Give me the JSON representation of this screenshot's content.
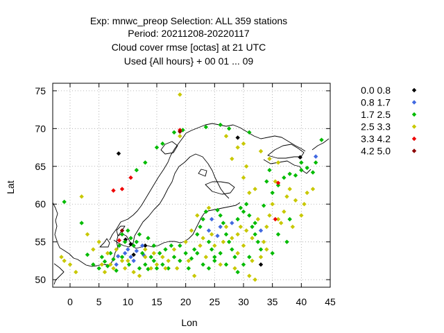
{
  "chart_data": {
    "type": "scatter",
    "title_lines": [
      "Exp: mnwc_preop   Selection: ALL    359 stations",
      "Period: 20211208-20220117",
      "Cloud cover rmse [octas] at  21 UTC",
      "Used {All hours} + 00 01 ... 09"
    ],
    "xlabel": "Lon",
    "ylabel": "Lat",
    "xlim": [
      -3,
      45
    ],
    "ylim": [
      49,
      76
    ],
    "xticks": [
      0,
      5,
      10,
      15,
      20,
      25,
      30,
      35,
      40,
      45
    ],
    "yticks": [
      50,
      55,
      60,
      65,
      70,
      75
    ],
    "grid": true,
    "legend_position": "right",
    "classes": [
      {
        "label": "0.0 0.8",
        "color": "#000000"
      },
      {
        "label": "0.8 1.7",
        "color": "#4169e1"
      },
      {
        "label": "1.7 2.5",
        "color": "#00bb00"
      },
      {
        "label": "2.5 3.3",
        "color": "#c8c800"
      },
      {
        "label": "3.3 4.2",
        "color": "#ee0000"
      },
      {
        "label": "4.2 5.0",
        "color": "#8b0000"
      }
    ],
    "points": [
      [
        [
          8.4,
          66.7
        ],
        [
          9.6,
          55.3
        ],
        [
          10.5,
          54.7
        ],
        [
          11.0,
          53.3
        ],
        [
          13.0,
          54.5
        ],
        [
          29.0,
          68.8
        ],
        [
          33.0,
          52.0
        ],
        [
          39.8,
          66.2
        ]
      ],
      [
        [
          8.0,
          52.0
        ],
        [
          9.5,
          53.5
        ],
        [
          10.0,
          54.0
        ],
        [
          10.5,
          53.0
        ],
        [
          11.0,
          52.5
        ],
        [
          11.5,
          53.8
        ],
        [
          12.5,
          54.5
        ],
        [
          24.0,
          56.5
        ],
        [
          24.5,
          58.0
        ],
        [
          25.5,
          55.8
        ],
        [
          26.0,
          57.0
        ],
        [
          28.0,
          57.5
        ],
        [
          33.0,
          56.5
        ],
        [
          42.5,
          66.3
        ],
        [
          8.3,
          53.1
        ],
        [
          12.8,
          53.2
        ]
      ],
      [
        [
          -1.0,
          60.3
        ],
        [
          2.0,
          57.5
        ],
        [
          3.0,
          53.3
        ],
        [
          4.0,
          52.0
        ],
        [
          5.0,
          51.5
        ],
        [
          5.5,
          53.0
        ],
        [
          6.0,
          52.4
        ],
        [
          6.5,
          51.8
        ],
        [
          7.0,
          53.5
        ],
        [
          7.5,
          52.7
        ],
        [
          8.0,
          51.2
        ],
        [
          8.5,
          54.5
        ],
        [
          9.0,
          53.0
        ],
        [
          9.0,
          56.0
        ],
        [
          9.5,
          55.0
        ],
        [
          10.0,
          56.5
        ],
        [
          10.2,
          52.0
        ],
        [
          10.5,
          55.5
        ],
        [
          11.0,
          54.5
        ],
        [
          11.5,
          55.0
        ],
        [
          12.0,
          51.5
        ],
        [
          12.5,
          53.5
        ],
        [
          13.0,
          52.0
        ],
        [
          13.5,
          51.4
        ],
        [
          14.0,
          53.0
        ],
        [
          14.5,
          52.5
        ],
        [
          15.0,
          51.5
        ],
        [
          15.5,
          53.5
        ],
        [
          16.0,
          52.0
        ],
        [
          17.0,
          51.5
        ],
        [
          18.0,
          53.0
        ],
        [
          19.0,
          52.5
        ],
        [
          20.0,
          53.5
        ],
        [
          20.5,
          51.5
        ],
        [
          21.0,
          52.8
        ],
        [
          21.5,
          54.0
        ],
        [
          22.0,
          56.0
        ],
        [
          22.5,
          57.0
        ],
        [
          23.0,
          58.0
        ],
        [
          23.5,
          59.0
        ],
        [
          24.0,
          55.0
        ],
        [
          24.5,
          54.0
        ],
        [
          25.0,
          53.0
        ],
        [
          25.5,
          59.2
        ],
        [
          26.0,
          58.5
        ],
        [
          26.5,
          57.5
        ],
        [
          27.0,
          56.0
        ],
        [
          27.5,
          55.0
        ],
        [
          28.0,
          54.0
        ],
        [
          28.5,
          53.0
        ],
        [
          29.0,
          58.0
        ],
        [
          29.5,
          59.5
        ],
        [
          30.0,
          59.0
        ],
        [
          30.5,
          60.0
        ],
        [
          31.0,
          58.5
        ],
        [
          31.5,
          57.0
        ],
        [
          32.0,
          56.0
        ],
        [
          32.5,
          55.0
        ],
        [
          33.0,
          54.0
        ],
        [
          33.5,
          59.8
        ],
        [
          34.0,
          63.0
        ],
        [
          34.5,
          64.5
        ],
        [
          35.0,
          61.5
        ],
        [
          36.0,
          62.5
        ],
        [
          37.0,
          63.5
        ],
        [
          38.0,
          64.0
        ],
        [
          39.0,
          63.8
        ],
        [
          40.0,
          64.5
        ],
        [
          41.0,
          64.8
        ],
        [
          42.0,
          64.2
        ],
        [
          43.5,
          68.5
        ],
        [
          31.0,
          69.5
        ],
        [
          27.5,
          70.0
        ],
        [
          26.0,
          70.5
        ],
        [
          23.5,
          70.2
        ],
        [
          19.5,
          69.8
        ],
        [
          13.0,
          65.5
        ],
        [
          11.5,
          64.5
        ],
        [
          15.0,
          67.5
        ],
        [
          16.0,
          68.0
        ],
        [
          18.0,
          69.5
        ],
        [
          22.0,
          53.5
        ],
        [
          23.0,
          52.0
        ],
        [
          24.0,
          51.5
        ],
        [
          25.0,
          52.5
        ],
        [
          26.0,
          53.5
        ],
        [
          27.0,
          52.0
        ],
        [
          29.0,
          51.0
        ],
        [
          30.0,
          52.0
        ],
        [
          31.0,
          53.0
        ],
        [
          32.0,
          57.5
        ],
        [
          36.0,
          56.0
        ],
        [
          38.0,
          58.0
        ],
        [
          40.0,
          65.5
        ],
        [
          42.5,
          65.5
        ],
        [
          19.0,
          54.5
        ],
        [
          17.5,
          54.5
        ],
        [
          16.5,
          54.0
        ],
        [
          13.5,
          55.5
        ],
        [
          12.0,
          56.0
        ],
        [
          14.5,
          54.5
        ],
        [
          35.0,
          53.5
        ],
        [
          37.5,
          55.0
        ]
      ],
      [
        [
          -1.5,
          53.0
        ],
        [
          -1.0,
          52.5
        ],
        [
          0.0,
          52.0
        ],
        [
          1.0,
          51.0
        ],
        [
          2.0,
          61.0
        ],
        [
          3.0,
          56.0
        ],
        [
          4.0,
          54.0
        ],
        [
          5.0,
          55.0
        ],
        [
          5.5,
          52.0
        ],
        [
          6.0,
          51.0
        ],
        [
          6.5,
          53.5
        ],
        [
          7.0,
          52.0
        ],
        [
          7.5,
          51.5
        ],
        [
          8.0,
          54.0
        ],
        [
          9.0,
          52.5
        ],
        [
          9.5,
          51.5
        ],
        [
          10.0,
          52.5
        ],
        [
          11.0,
          51.0
        ],
        [
          12.0,
          50.5
        ],
        [
          13.0,
          53.0
        ],
        [
          14.0,
          51.5
        ],
        [
          15.0,
          52.0
        ],
        [
          16.0,
          53.0
        ],
        [
          17.0,
          52.5
        ],
        [
          18.0,
          54.0
        ],
        [
          19.0,
          74.5
        ],
        [
          19.0,
          69.0
        ],
        [
          20.0,
          55.0
        ],
        [
          21.0,
          56.5
        ],
        [
          22.0,
          58.5
        ],
        [
          22.5,
          54.5
        ],
        [
          23.0,
          55.5
        ],
        [
          23.5,
          53.0
        ],
        [
          24.0,
          59.5
        ],
        [
          25.0,
          54.5
        ],
        [
          26.0,
          52.0
        ],
        [
          27.0,
          57.0
        ],
        [
          28.0,
          55.5
        ],
        [
          28.5,
          51.5
        ],
        [
          29.0,
          53.5
        ],
        [
          29.5,
          57.0
        ],
        [
          30.0,
          54.5
        ],
        [
          30.5,
          56.5
        ],
        [
          31.0,
          50.5
        ],
        [
          31.5,
          52.5
        ],
        [
          32.0,
          50.0
        ],
        [
          32.5,
          58.0
        ],
        [
          33.0,
          53.0
        ],
        [
          33.5,
          55.0
        ],
        [
          34.0,
          57.0
        ],
        [
          34.5,
          58.5
        ],
        [
          35.0,
          60.0
        ],
        [
          35.5,
          63.0
        ],
        [
          36.0,
          65.5
        ],
        [
          36.5,
          57.5
        ],
        [
          37.0,
          59.0
        ],
        [
          37.5,
          61.0
        ],
        [
          38.0,
          62.0
        ],
        [
          39.0,
          60.5
        ],
        [
          40.0,
          58.5
        ],
        [
          41.0,
          61.5
        ],
        [
          42.0,
          62.0
        ],
        [
          33.0,
          67.0
        ],
        [
          34.5,
          66.0
        ],
        [
          30.5,
          65.0
        ],
        [
          30.0,
          63.5
        ],
        [
          32.0,
          62.0
        ],
        [
          31.0,
          61.5
        ],
        [
          29.0,
          67.5
        ],
        [
          28.0,
          66.0
        ],
        [
          27.0,
          69.0
        ],
        [
          30.0,
          68.0
        ],
        [
          13.0,
          54.0
        ],
        [
          14.5,
          53.5
        ],
        [
          16.5,
          51.5
        ],
        [
          18.5,
          51.5
        ],
        [
          20.5,
          52.5
        ],
        [
          21.5,
          50.5
        ],
        [
          24.5,
          56.0
        ],
        [
          26.5,
          55.0
        ],
        [
          29.0,
          56.0
        ],
        [
          31.5,
          55.5
        ],
        [
          34.0,
          54.0
        ],
        [
          36.0,
          58.0
        ],
        [
          38.5,
          57.0
        ],
        [
          40.5,
          60.0
        ]
      ],
      [
        [
          7.5,
          61.8
        ],
        [
          9.0,
          62.0
        ],
        [
          10.5,
          63.5
        ],
        [
          8.5,
          55.2
        ],
        [
          35.5,
          58.0
        ],
        [
          36.0,
          62.8
        ],
        [
          19.0,
          69.8
        ]
      ],
      [
        [
          9.0,
          56.5
        ],
        [
          19.0,
          69.6
        ]
      ]
    ]
  }
}
